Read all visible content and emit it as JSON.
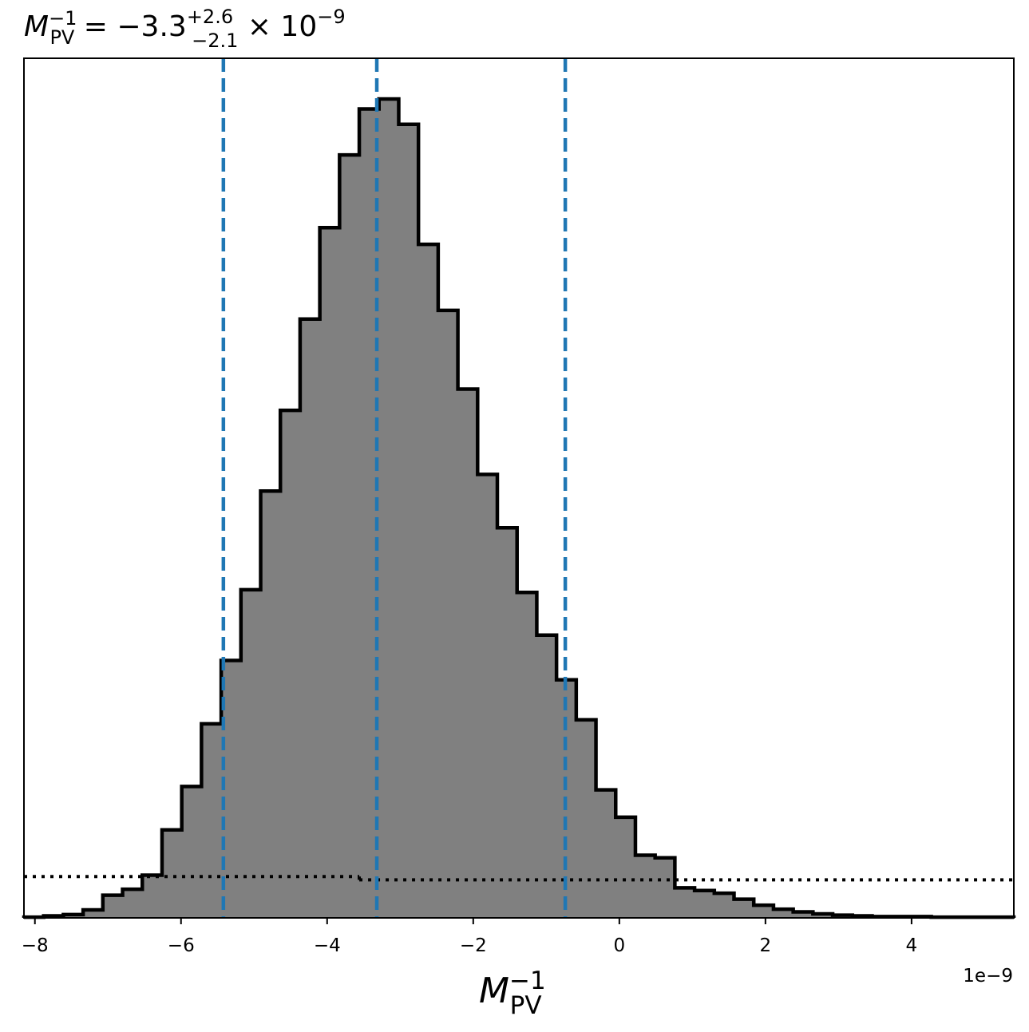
{
  "chart_data": {
    "type": "bar",
    "title": {
      "symbol": "M",
      "sub": "PV",
      "sup": "−1",
      "eq": " = −3.3",
      "err_plus": "+2.6",
      "err_minus": "−2.1",
      "times": " × 10",
      "exp": "−9"
    },
    "xlabel": {
      "symbol": "M",
      "sub": "PV",
      "sup": "−1"
    },
    "ylabel": "",
    "offset_text": "1e−9",
    "x_scale_factor": 1e-09,
    "xlim": [
      -8.15,
      5.4
    ],
    "ylim": [
      0,
      1.0
    ],
    "x_ticks": [
      -8,
      -6,
      -4,
      -2,
      0,
      2,
      4
    ],
    "x_tick_labels": [
      "−8",
      "−6",
      "−4",
      "−2",
      "0",
      "2",
      "4"
    ],
    "y_ticks_visible": false,
    "hist_fill_color": "#808080",
    "hist_edge_color": "#000000",
    "bin_edges": [
      -8.15,
      -7.88,
      -7.61,
      -7.34,
      -7.07,
      -6.8,
      -6.53,
      -6.26,
      -5.99,
      -5.72,
      -5.45,
      -5.18,
      -4.91,
      -4.64,
      -4.37,
      -4.1,
      -3.83,
      -3.56,
      -3.29,
      -3.02,
      -2.75,
      -2.48,
      -2.21,
      -1.94,
      -1.67,
      -1.4,
      -1.13,
      -0.86,
      -0.59,
      -0.32,
      -0.05,
      0.22,
      0.49,
      0.76,
      1.03,
      1.3,
      1.57,
      1.84,
      2.11,
      2.38,
      2.65,
      2.92,
      3.19,
      3.46,
      3.73,
      4.0,
      4.27,
      4.54,
      4.81,
      5.08,
      5.4
    ],
    "counts": [
      0.001,
      0.003,
      0.005,
      0.012,
      0.034,
      0.043,
      0.064,
      0.132,
      0.197,
      0.291,
      0.386,
      0.492,
      0.64,
      0.761,
      0.898,
      1.035,
      1.144,
      1.213,
      1.228,
      1.19,
      1.01,
      0.911,
      0.793,
      0.665,
      0.585,
      0.488,
      0.424,
      0.357,
      0.297,
      0.192,
      0.151,
      0.094,
      0.09,
      0.045,
      0.041,
      0.037,
      0.028,
      0.019,
      0.013,
      0.009,
      0.006,
      0.004,
      0.003,
      0.002,
      0.002,
      0.002,
      0.001,
      0.001,
      0.001,
      0.001
    ],
    "count_max": 1.228,
    "quantile_lines": {
      "values": [
        -5.42,
        -3.32,
        -0.74
      ],
      "color": "#1f77b4",
      "style": "dashed"
    },
    "prior": {
      "style": "dotted",
      "color": "#000000",
      "steps": [
        {
          "x0": -8.15,
          "x1": -3.56,
          "y": 0.062
        },
        {
          "x0": -3.56,
          "x1": 5.4,
          "y": 0.057
        }
      ]
    }
  }
}
